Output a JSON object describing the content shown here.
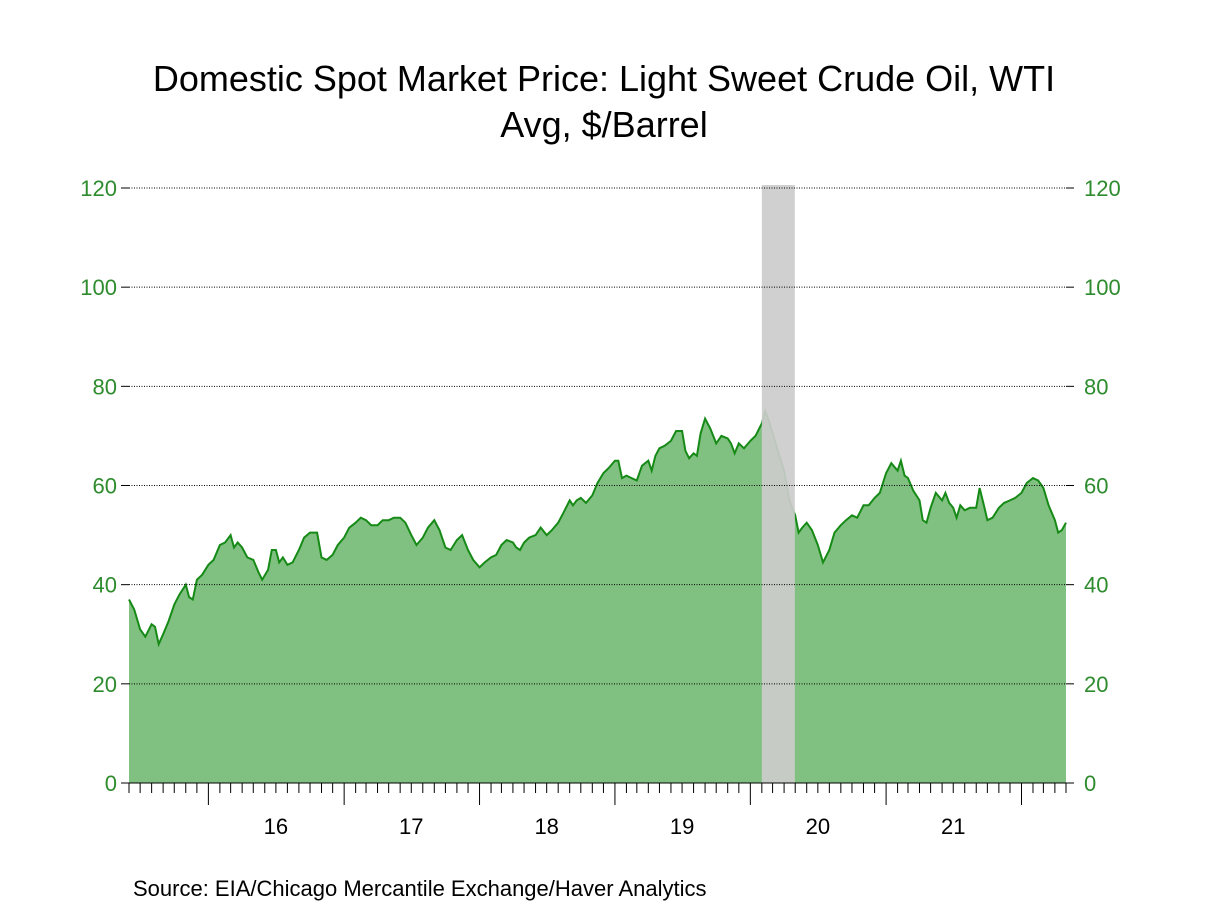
{
  "chart_data": {
    "type": "area",
    "title": "Domestic Spot Market Price: Light Sweet Crude Oil, WTI",
    "subtitle": "Avg, $/Barrel",
    "source": "Source:  EIA/Chicago Mercantile Exchange/Haver Analytics",
    "ylim": [
      0,
      120
    ],
    "yticks": [
      0,
      20,
      40,
      60,
      80,
      100,
      120
    ],
    "ytick_labels": [
      "0",
      "20",
      "40",
      "60",
      "80",
      "100",
      "120"
    ],
    "xlim": [
      "2015-06-01",
      "2022-05-01"
    ],
    "xtick_labels": [
      {
        "label": "16",
        "x": "2016-07-01"
      },
      {
        "label": "17",
        "x": "2017-07-01"
      },
      {
        "label": "18",
        "x": "2018-07-01"
      },
      {
        "label": "19",
        "x": "2019-07-01"
      },
      {
        "label": "20",
        "x": "2020-07-01"
      },
      {
        "label": "21",
        "x": "2021-07-01"
      }
    ],
    "grid": true,
    "recession": {
      "start": "2020-02-01",
      "end": "2020-04-30",
      "color": "#cccccc"
    },
    "colors": {
      "line": "#168a16",
      "fill": "#80c080",
      "axis": "#2e8b2e"
    },
    "series": [
      {
        "values": [
          [
            "2015-06-01",
            37
          ],
          [
            "2015-06-15",
            35
          ],
          [
            "2015-07-01",
            31
          ],
          [
            "2015-07-15",
            29.5
          ],
          [
            "2015-08-01",
            32
          ],
          [
            "2015-08-10",
            31.5
          ],
          [
            "2015-08-20",
            28
          ],
          [
            "2015-09-01",
            30
          ],
          [
            "2015-09-15",
            32.5
          ],
          [
            "2015-10-01",
            36
          ],
          [
            "2015-10-15",
            38
          ],
          [
            "2015-11-01",
            40
          ],
          [
            "2015-11-10",
            37.5
          ],
          [
            "2015-11-20",
            37
          ],
          [
            "2015-12-01",
            41
          ],
          [
            "2015-12-15",
            42
          ],
          [
            "2016-01-01",
            44
          ],
          [
            "2016-01-15",
            45
          ],
          [
            "2016-02-01",
            48
          ],
          [
            "2016-02-15",
            48.5
          ],
          [
            "2016-03-01",
            50
          ],
          [
            "2016-03-10",
            47.5
          ],
          [
            "2016-03-20",
            48.5
          ],
          [
            "2016-04-01",
            47.5
          ],
          [
            "2016-04-15",
            45.5
          ],
          [
            "2016-05-01",
            45
          ],
          [
            "2016-05-15",
            42.5
          ],
          [
            "2016-05-25",
            41
          ],
          [
            "2016-06-10",
            43
          ],
          [
            "2016-06-20",
            47
          ],
          [
            "2016-07-01",
            47
          ],
          [
            "2016-07-10",
            44.5
          ],
          [
            "2016-07-20",
            45.5
          ],
          [
            "2016-08-01",
            44
          ],
          [
            "2016-08-15",
            44.5
          ],
          [
            "2016-09-01",
            47
          ],
          [
            "2016-09-15",
            49.5
          ],
          [
            "2016-10-01",
            50.5
          ],
          [
            "2016-10-20",
            50.5
          ],
          [
            "2016-11-01",
            45.5
          ],
          [
            "2016-11-15",
            45
          ],
          [
            "2016-12-01",
            46
          ],
          [
            "2016-12-15",
            48
          ],
          [
            "2017-01-01",
            49.5
          ],
          [
            "2017-01-15",
            51.5
          ],
          [
            "2017-02-01",
            52.5
          ],
          [
            "2017-02-15",
            53.5
          ],
          [
            "2017-03-01",
            53
          ],
          [
            "2017-03-15",
            52
          ],
          [
            "2017-04-01",
            52
          ],
          [
            "2017-04-15",
            53
          ],
          [
            "2017-05-01",
            53
          ],
          [
            "2017-05-15",
            53.5
          ],
          [
            "2017-06-01",
            53.5
          ],
          [
            "2017-06-15",
            52.5
          ],
          [
            "2017-07-01",
            50
          ],
          [
            "2017-07-15",
            48
          ],
          [
            "2017-08-01",
            49.5
          ],
          [
            "2017-08-15",
            51.5
          ],
          [
            "2017-09-01",
            53
          ],
          [
            "2017-09-15",
            51
          ],
          [
            "2017-10-01",
            47.5
          ],
          [
            "2017-10-15",
            47
          ],
          [
            "2017-11-01",
            49
          ],
          [
            "2017-11-15",
            50
          ],
          [
            "2017-12-01",
            47
          ],
          [
            "2017-12-15",
            45
          ],
          [
            "2018-01-01",
            43.5
          ],
          [
            "2018-01-15",
            44.5
          ],
          [
            "2018-02-01",
            45.5
          ],
          [
            "2018-02-15",
            46
          ],
          [
            "2018-03-01",
            48
          ],
          [
            "2018-03-15",
            49
          ],
          [
            "2018-04-01",
            48.5
          ],
          [
            "2018-04-10",
            47.5
          ],
          [
            "2018-04-20",
            47
          ],
          [
            "2018-05-01",
            48.5
          ],
          [
            "2018-05-15",
            49.5
          ],
          [
            "2018-06-01",
            50
          ],
          [
            "2018-06-15",
            51.5
          ],
          [
            "2018-07-01",
            50
          ],
          [
            "2018-07-15",
            51
          ],
          [
            "2018-08-01",
            52.5
          ],
          [
            "2018-08-15",
            54.5
          ],
          [
            "2018-09-01",
            57
          ],
          [
            "2018-09-10",
            56
          ],
          [
            "2018-09-20",
            57
          ],
          [
            "2018-10-01",
            57.5
          ],
          [
            "2018-10-15",
            56.5
          ],
          [
            "2018-11-01",
            58
          ],
          [
            "2018-11-15",
            60.5
          ],
          [
            "2018-12-01",
            62.5
          ],
          [
            "2018-12-15",
            63.5
          ],
          [
            "2019-01-01",
            65
          ],
          [
            "2019-01-10",
            65
          ],
          [
            "2019-01-20",
            61.5
          ],
          [
            "2019-02-01",
            62
          ],
          [
            "2019-02-15",
            61.5
          ],
          [
            "2019-03-01",
            61
          ],
          [
            "2019-03-15",
            64
          ],
          [
            "2019-04-01",
            65
          ],
          [
            "2019-04-10",
            63
          ],
          [
            "2019-04-20",
            66
          ],
          [
            "2019-05-01",
            67.5
          ],
          [
            "2019-05-15",
            68
          ],
          [
            "2019-06-01",
            69
          ],
          [
            "2019-06-15",
            71
          ],
          [
            "2019-07-01",
            71
          ],
          [
            "2019-07-10",
            67
          ],
          [
            "2019-07-20",
            65.5
          ],
          [
            "2019-08-01",
            66.5
          ],
          [
            "2019-08-10",
            66
          ],
          [
            "2019-08-20",
            70.5
          ],
          [
            "2019-09-01",
            73.5
          ],
          [
            "2019-09-15",
            71.5
          ],
          [
            "2019-10-01",
            68.5
          ],
          [
            "2019-10-15",
            70
          ],
          [
            "2019-11-01",
            69.5
          ],
          [
            "2019-11-10",
            68.5
          ],
          [
            "2019-11-20",
            66.5
          ],
          [
            "2019-12-01",
            68.5
          ],
          [
            "2019-12-15",
            67.5
          ],
          [
            "2020-01-01",
            69
          ],
          [
            "2020-01-15",
            70
          ],
          [
            "2020-02-01",
            72.5
          ],
          [
            "2020-02-10",
            75
          ],
          [
            "2020-02-20",
            73
          ],
          [
            "2020-03-01",
            70.5
          ],
          [
            "2020-03-15",
            67
          ],
          [
            "2020-04-01",
            63
          ],
          [
            "2020-04-15",
            57
          ],
          [
            "2020-05-01",
            54
          ],
          [
            "2020-05-10",
            50.5
          ],
          [
            "2020-05-20",
            51.5
          ],
          [
            "2020-06-01",
            52.5
          ],
          [
            "2020-06-15",
            51
          ],
          [
            "2020-07-01",
            48
          ],
          [
            "2020-07-15",
            44.5
          ],
          [
            "2020-08-01",
            47
          ],
          [
            "2020-08-15",
            50.5
          ],
          [
            "2020-09-01",
            52
          ],
          [
            "2020-09-15",
            53
          ],
          [
            "2020-10-01",
            54
          ],
          [
            "2020-10-15",
            53.5
          ],
          [
            "2020-11-01",
            56
          ],
          [
            "2020-11-15",
            56
          ],
          [
            "2020-12-01",
            57.5
          ],
          [
            "2020-12-15",
            58.5
          ],
          [
            "2021-01-01",
            62.5
          ],
          [
            "2021-01-15",
            64.5
          ],
          [
            "2021-02-01",
            63
          ],
          [
            "2021-02-10",
            65
          ],
          [
            "2021-02-20",
            62
          ],
          [
            "2021-03-01",
            61.5
          ],
          [
            "2021-03-15",
            59
          ],
          [
            "2021-04-01",
            57
          ],
          [
            "2021-04-10",
            53
          ],
          [
            "2021-04-20",
            52.5
          ],
          [
            "2021-05-01",
            55.5
          ],
          [
            "2021-05-15",
            58.5
          ],
          [
            "2021-06-01",
            57
          ],
          [
            "2021-06-10",
            58.5
          ],
          [
            "2021-06-20",
            56.5
          ],
          [
            "2021-07-01",
            55.5
          ],
          [
            "2021-07-10",
            53.5
          ],
          [
            "2021-07-20",
            56
          ],
          [
            "2021-08-01",
            55
          ],
          [
            "2021-08-15",
            55.5
          ],
          [
            "2021-09-01",
            55.5
          ],
          [
            "2021-09-10",
            59.5
          ],
          [
            "2021-09-20",
            56.5
          ],
          [
            "2021-10-01",
            53
          ],
          [
            "2021-10-15",
            53.5
          ],
          [
            "2021-11-01",
            55.5
          ],
          [
            "2021-11-15",
            56.5
          ],
          [
            "2021-12-01",
            57
          ],
          [
            "2021-12-15",
            57.5
          ],
          [
            "2022-01-01",
            58.5
          ],
          [
            "2022-01-15",
            60.5
          ],
          [
            "2022-02-01",
            61.5
          ],
          [
            "2022-02-15",
            61
          ],
          [
            "2022-03-01",
            59.5
          ],
          [
            "2022-03-15",
            56
          ],
          [
            "2022-04-01",
            53
          ],
          [
            "2022-04-10",
            50.5
          ],
          [
            "2022-04-20",
            51
          ],
          [
            "2022-05-01",
            52.5
          ]
        ]
      }
    ]
  }
}
